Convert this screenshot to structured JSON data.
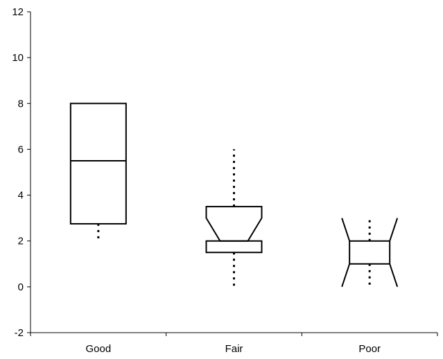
{
  "chart_data": {
    "type": "box",
    "title": "",
    "xlabel": "",
    "ylabel": "",
    "ylim": [
      -2,
      12
    ],
    "y_ticks": [
      -2,
      0,
      2,
      4,
      6,
      8,
      10,
      12
    ],
    "y_tick_labels": [
      "-2",
      "0",
      "2",
      "4",
      "6",
      "8",
      "10",
      "12"
    ],
    "categories": [
      "Good",
      "Fair",
      "Poor"
    ],
    "grid": false,
    "legend": "none",
    "boxes": [
      {
        "category": "Good",
        "min": 2.0,
        "q1": 2.75,
        "median": 5.5,
        "q3": 8.0,
        "max": 8.0,
        "notch_low": 5.5,
        "notch_high": 5.5
      },
      {
        "category": "Fair",
        "min": 0.0,
        "q1": 1.5,
        "median": 2.0,
        "q3": 3.5,
        "max": 6.0,
        "notch_low": 2.0,
        "notch_high": 3.0
      },
      {
        "category": "Poor",
        "min": 0.0,
        "q1": 1.0,
        "median": 1.0,
        "q3": 2.0,
        "max": 3.0,
        "notch_low": 0.0,
        "notch_high": 3.0
      }
    ],
    "colors": {
      "line": "#000000",
      "background": "#ffffff"
    }
  }
}
